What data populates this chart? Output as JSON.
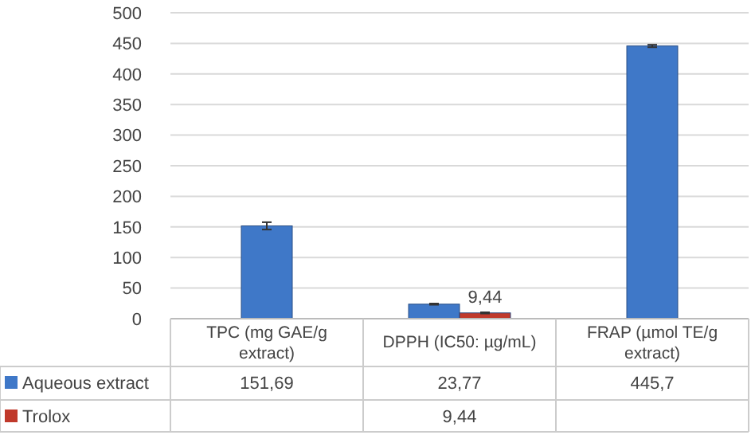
{
  "chart_data": {
    "type": "bar",
    "categories": [
      "TPC (mg GAE/g extract)",
      "DPPH (IC50: µg/mL)",
      "FRAP (µmol TE/g extract)"
    ],
    "series": [
      {
        "name": "Aqueous extract",
        "color": "#3f78c8",
        "values": [
          151.69,
          23.77,
          445.7
        ],
        "errors": [
          6,
          1,
          2
        ],
        "value_labels": [
          "151,69",
          "23,77",
          "445,7"
        ]
      },
      {
        "name": "Trolox",
        "color": "#c0392b",
        "values": [
          null,
          9.44,
          null
        ],
        "errors": [
          null,
          1,
          null
        ],
        "value_labels": [
          null,
          "9,44",
          null
        ]
      }
    ],
    "ylim": [
      0,
      500
    ],
    "yticks": [
      0,
      50,
      100,
      150,
      200,
      250,
      300,
      350,
      400,
      450,
      500
    ],
    "grid": "y",
    "legend": "bottom"
  }
}
